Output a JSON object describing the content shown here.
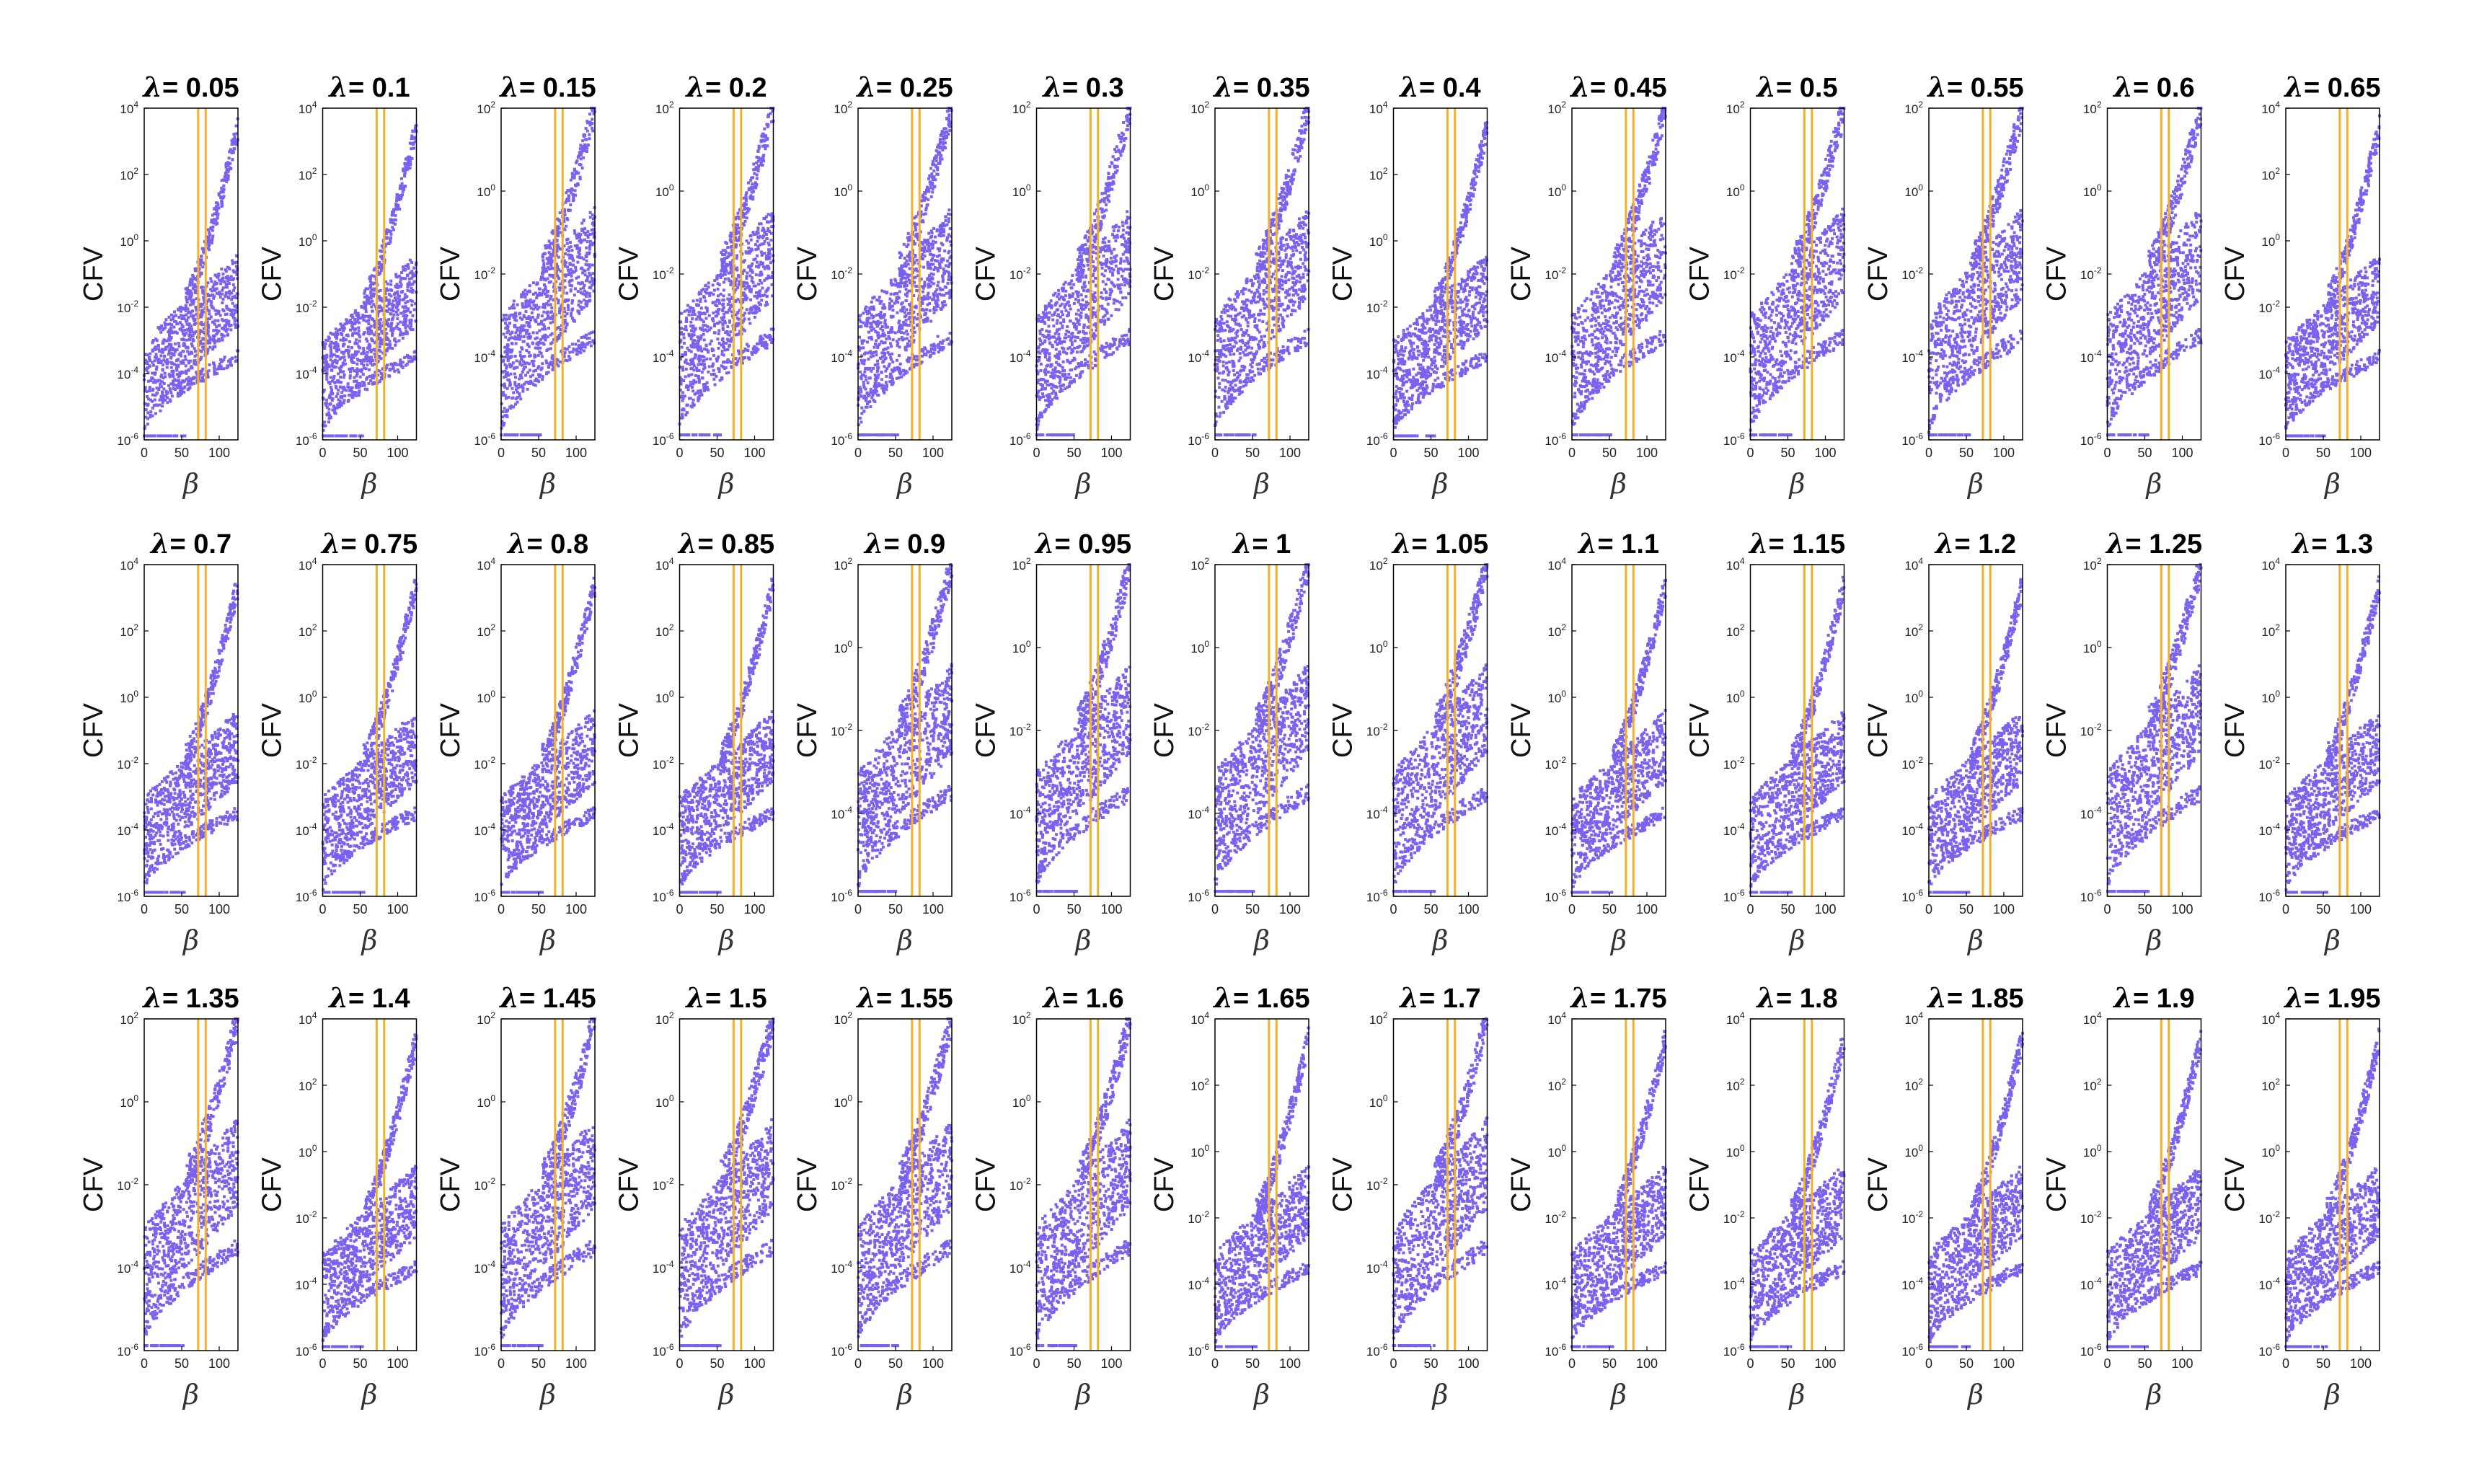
{
  "chart_data": {
    "type": "scatter",
    "layout": "3 rows × 13 small-multiple panels",
    "ylabel": "CFV",
    "xlabel": "β",
    "title_prefix": "λ",
    "title_separator": "= ",
    "x_ticks": [
      "0",
      "50",
      "100"
    ],
    "xlim": [
      0,
      125
    ],
    "yscale": "log",
    "reference_lines_x": [
      72,
      82
    ],
    "colors": {
      "points": "#7b61f0",
      "reference_lines": "#f5b02a",
      "axes": "#000000"
    },
    "panels": [
      {
        "lambda": "0.05",
        "ylim_exp": [
          -6,
          4
        ],
        "y_ticks": [
          "10^-6",
          "10^-4",
          "10^-2",
          "10^0",
          "10^2",
          "10^4"
        ]
      },
      {
        "lambda": "0.1",
        "ylim_exp": [
          -6,
          4
        ],
        "y_ticks": [
          "10^-6",
          "10^-4",
          "10^-2",
          "10^0",
          "10^2",
          "10^4"
        ]
      },
      {
        "lambda": "0.15",
        "ylim_exp": [
          -6,
          2
        ],
        "y_ticks": [
          "10^-6",
          "10^-4",
          "10^-2",
          "10^0",
          "10^2"
        ]
      },
      {
        "lambda": "0.2",
        "ylim_exp": [
          -6,
          2
        ],
        "y_ticks": [
          "10^-6",
          "10^-4",
          "10^-2",
          "10^0",
          "10^2"
        ]
      },
      {
        "lambda": "0.25",
        "ylim_exp": [
          -6,
          2
        ],
        "y_ticks": [
          "10^-6",
          "10^-4",
          "10^-2",
          "10^0",
          "10^2"
        ]
      },
      {
        "lambda": "0.3",
        "ylim_exp": [
          -6,
          2
        ],
        "y_ticks": [
          "10^-6",
          "10^-4",
          "10^-2",
          "10^0",
          "10^2"
        ]
      },
      {
        "lambda": "0.35",
        "ylim_exp": [
          -6,
          2
        ],
        "y_ticks": [
          "10^-6",
          "10^-4",
          "10^-2",
          "10^0",
          "10^2"
        ]
      },
      {
        "lambda": "0.4",
        "ylim_exp": [
          -6,
          4
        ],
        "y_ticks": [
          "10^-6",
          "10^-4",
          "10^-2",
          "10^0",
          "10^2",
          "10^4"
        ]
      },
      {
        "lambda": "0.45",
        "ylim_exp": [
          -6,
          2
        ],
        "y_ticks": [
          "10^-6",
          "10^-4",
          "10^-2",
          "10^0",
          "10^2"
        ]
      },
      {
        "lambda": "0.5",
        "ylim_exp": [
          -6,
          2
        ],
        "y_ticks": [
          "10^-6",
          "10^-4",
          "10^-2",
          "10^0",
          "10^2"
        ]
      },
      {
        "lambda": "0.55",
        "ylim_exp": [
          -6,
          2
        ],
        "y_ticks": [
          "10^-6",
          "10^-4",
          "10^-2",
          "10^0",
          "10^2"
        ]
      },
      {
        "lambda": "0.6",
        "ylim_exp": [
          -6,
          2
        ],
        "y_ticks": [
          "10^-6",
          "10^-4",
          "10^-2",
          "10^0",
          "10^2"
        ]
      },
      {
        "lambda": "0.65",
        "ylim_exp": [
          -6,
          4
        ],
        "y_ticks": [
          "10^-6",
          "10^-4",
          "10^-2",
          "10^0",
          "10^2",
          "10^4"
        ]
      },
      {
        "lambda": "0.7",
        "ylim_exp": [
          -6,
          4
        ],
        "y_ticks": [
          "10^-6",
          "10^-4",
          "10^-2",
          "10^0",
          "10^2",
          "10^4"
        ]
      },
      {
        "lambda": "0.75",
        "ylim_exp": [
          -6,
          4
        ],
        "y_ticks": [
          "10^-6",
          "10^-4",
          "10^-2",
          "10^0",
          "10^2",
          "10^4"
        ]
      },
      {
        "lambda": "0.8",
        "ylim_exp": [
          -6,
          4
        ],
        "y_ticks": [
          "10^-6",
          "10^-4",
          "10^-2",
          "10^0",
          "10^2",
          "10^4"
        ]
      },
      {
        "lambda": "0.85",
        "ylim_exp": [
          -6,
          4
        ],
        "y_ticks": [
          "10^-6",
          "10^-4",
          "10^-2",
          "10^0",
          "10^2",
          "10^4"
        ]
      },
      {
        "lambda": "0.9",
        "ylim_exp": [
          -6,
          2
        ],
        "y_ticks": [
          "10^-6",
          "10^-4",
          "10^-2",
          "10^0",
          "10^2"
        ]
      },
      {
        "lambda": "0.95",
        "ylim_exp": [
          -6,
          2
        ],
        "y_ticks": [
          "10^-6",
          "10^-4",
          "10^-2",
          "10^0",
          "10^2"
        ]
      },
      {
        "lambda": "1",
        "ylim_exp": [
          -6,
          2
        ],
        "y_ticks": [
          "10^-6",
          "10^-4",
          "10^-2",
          "10^0",
          "10^2"
        ]
      },
      {
        "lambda": "1.05",
        "ylim_exp": [
          -6,
          2
        ],
        "y_ticks": [
          "10^-6",
          "10^-4",
          "10^-2",
          "10^0",
          "10^2"
        ]
      },
      {
        "lambda": "1.1",
        "ylim_exp": [
          -6,
          4
        ],
        "y_ticks": [
          "10^-6",
          "10^-4",
          "10^-2",
          "10^0",
          "10^2",
          "10^4"
        ]
      },
      {
        "lambda": "1.15",
        "ylim_exp": [
          -6,
          4
        ],
        "y_ticks": [
          "10^-6",
          "10^-4",
          "10^-2",
          "10^0",
          "10^2",
          "10^4"
        ]
      },
      {
        "lambda": "1.2",
        "ylim_exp": [
          -6,
          4
        ],
        "y_ticks": [
          "10^-6",
          "10^-4",
          "10^-2",
          "10^0",
          "10^2",
          "10^4"
        ]
      },
      {
        "lambda": "1.25",
        "ylim_exp": [
          -6,
          2
        ],
        "y_ticks": [
          "10^-6",
          "10^-4",
          "10^-2",
          "10^0",
          "10^2"
        ]
      },
      {
        "lambda": "1.3",
        "ylim_exp": [
          -6,
          4
        ],
        "y_ticks": [
          "10^-6",
          "10^-4",
          "10^-2",
          "10^0",
          "10^2",
          "10^4"
        ]
      },
      {
        "lambda": "1.35",
        "ylim_exp": [
          -6,
          2
        ],
        "y_ticks": [
          "10^-6",
          "10^-4",
          "10^-2",
          "10^0",
          "10^2"
        ]
      },
      {
        "lambda": "1.4",
        "ylim_exp": [
          -6,
          4
        ],
        "y_ticks": [
          "10^-6",
          "10^-4",
          "10^-2",
          "10^0",
          "10^2",
          "10^4"
        ]
      },
      {
        "lambda": "1.45",
        "ylim_exp": [
          -6,
          2
        ],
        "y_ticks": [
          "10^-6",
          "10^-4",
          "10^-2",
          "10^0",
          "10^2"
        ]
      },
      {
        "lambda": "1.5",
        "ylim_exp": [
          -6,
          2
        ],
        "y_ticks": [
          "10^-6",
          "10^-4",
          "10^-2",
          "10^0",
          "10^2"
        ]
      },
      {
        "lambda": "1.55",
        "ylim_exp": [
          -6,
          2
        ],
        "y_ticks": [
          "10^-6",
          "10^-4",
          "10^-2",
          "10^0",
          "10^2"
        ]
      },
      {
        "lambda": "1.6",
        "ylim_exp": [
          -6,
          2
        ],
        "y_ticks": [
          "10^-6",
          "10^-4",
          "10^-2",
          "10^0",
          "10^2"
        ]
      },
      {
        "lambda": "1.65",
        "ylim_exp": [
          -6,
          4
        ],
        "y_ticks": [
          "10^-6",
          "10^-4",
          "10^-2",
          "10^0",
          "10^2",
          "10^4"
        ]
      },
      {
        "lambda": "1.7",
        "ylim_exp": [
          -6,
          2
        ],
        "y_ticks": [
          "10^-6",
          "10^-4",
          "10^-2",
          "10^0",
          "10^2"
        ]
      },
      {
        "lambda": "1.75",
        "ylim_exp": [
          -6,
          4
        ],
        "y_ticks": [
          "10^-6",
          "10^-4",
          "10^-2",
          "10^0",
          "10^2",
          "10^4"
        ]
      },
      {
        "lambda": "1.8",
        "ylim_exp": [
          -6,
          4
        ],
        "y_ticks": [
          "10^-6",
          "10^-4",
          "10^-2",
          "10^0",
          "10^2",
          "10^4"
        ]
      },
      {
        "lambda": "1.85",
        "ylim_exp": [
          -6,
          4
        ],
        "y_ticks": [
          "10^-6",
          "10^-4",
          "10^-2",
          "10^0",
          "10^2",
          "10^4"
        ]
      },
      {
        "lambda": "1.9",
        "ylim_exp": [
          -6,
          4
        ],
        "y_ticks": [
          "10^-6",
          "10^-4",
          "10^-2",
          "10^0",
          "10^2",
          "10^4"
        ]
      },
      {
        "lambda": "1.95",
        "ylim_exp": [
          -6,
          4
        ],
        "y_ticks": [
          "10^-6",
          "10^-4",
          "10^-2",
          "10^0",
          "10^2",
          "10^4"
        ]
      }
    ]
  }
}
